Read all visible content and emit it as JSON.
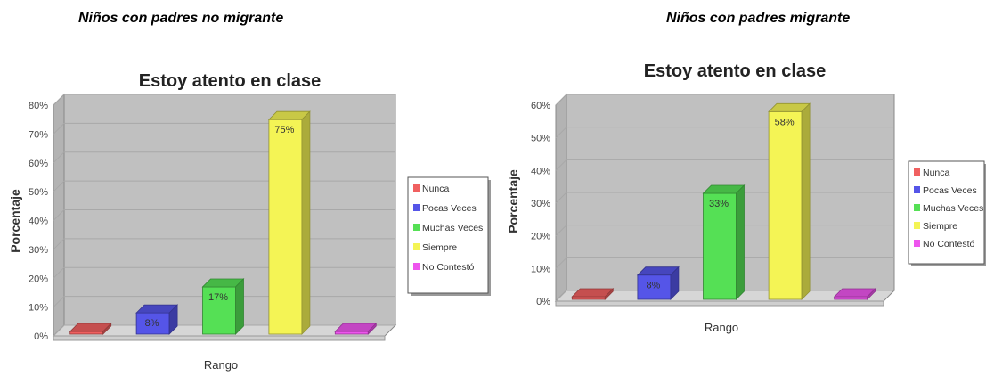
{
  "figures": [
    {
      "heading": "Niños con padres no migrante",
      "chart_data": {
        "type": "bar",
        "title": "Estoy atento en clase",
        "xlabel": "Rango",
        "ylabel": "Porcentaje",
        "ylim": [
          0,
          80
        ],
        "yticks": [
          "0%",
          "10%",
          "20%",
          "30%",
          "40%",
          "50%",
          "60%",
          "70%",
          "80%"
        ],
        "categories": [
          "Nunca",
          "Pocas Veces",
          "Muchas Veces",
          "Siempre",
          "No Contestó"
        ],
        "values": [
          0,
          8,
          17,
          75,
          0
        ],
        "data_labels": [
          "",
          "8%",
          "17%",
          "75%",
          ""
        ],
        "colors": [
          "#f06060",
          "#5555e8",
          "#55e055",
          "#f4f455",
          "#ee55ee"
        ],
        "legend_position": "right",
        "grid": true
      }
    },
    {
      "heading": "Niños con padres migrante",
      "chart_data": {
        "type": "bar",
        "title": "Estoy atento en clase",
        "xlabel": "Rango",
        "ylabel": "Porcentaje",
        "ylim": [
          0,
          60
        ],
        "yticks": [
          "0%",
          "10%",
          "20%",
          "30%",
          "40%",
          "50%",
          "60%"
        ],
        "categories": [
          "Nunca",
          "Pocas Veces",
          "Muchas Veces",
          "Siempre",
          "No Contestó"
        ],
        "values": [
          0,
          8,
          33,
          58,
          0
        ],
        "data_labels": [
          "",
          "8%",
          "33%",
          "58%",
          ""
        ],
        "colors": [
          "#f06060",
          "#5555e8",
          "#55e055",
          "#f4f455",
          "#ee55ee"
        ],
        "legend_position": "right",
        "grid": true
      }
    }
  ]
}
